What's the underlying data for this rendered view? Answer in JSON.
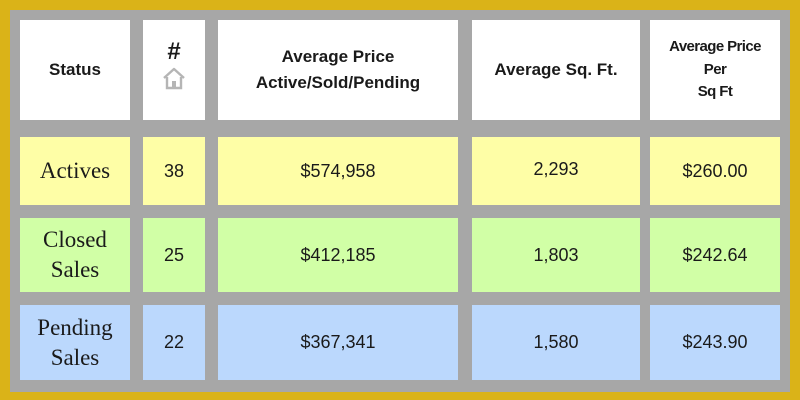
{
  "table": {
    "headers": {
      "status": "Status",
      "count": "#",
      "avg_price": [
        "Average Price",
        "Active/Sold/Pending"
      ],
      "avg_sqft": "Average Sq. Ft.",
      "avg_price_per_sqft": [
        "Average Price",
        "Per",
        "Sq Ft"
      ]
    },
    "rows": [
      {
        "status": [
          "Actives"
        ],
        "count": "38",
        "avg_price": "$574,958",
        "avg_sqft": "2,293",
        "avg_price_per_sqft": "$260.00",
        "color": "#fefea6"
      },
      {
        "status": [
          "Closed",
          "Sales"
        ],
        "count": "25",
        "avg_price": "$412,185",
        "avg_sqft": "1,803",
        "avg_price_per_sqft": "$242.64",
        "color": "#d1ffa6"
      },
      {
        "status": [
          "Pending",
          "Sales"
        ],
        "count": "22",
        "avg_price": "$367,341",
        "avg_sqft": "1,580",
        "avg_price_per_sqft": "$243.90",
        "color": "#bbd8fd"
      }
    ]
  },
  "colors": {
    "border": "#dab318",
    "grid": "#a7a7a7",
    "header": "#ffffff"
  },
  "icons": {
    "count_header_icon": "home-icon"
  }
}
